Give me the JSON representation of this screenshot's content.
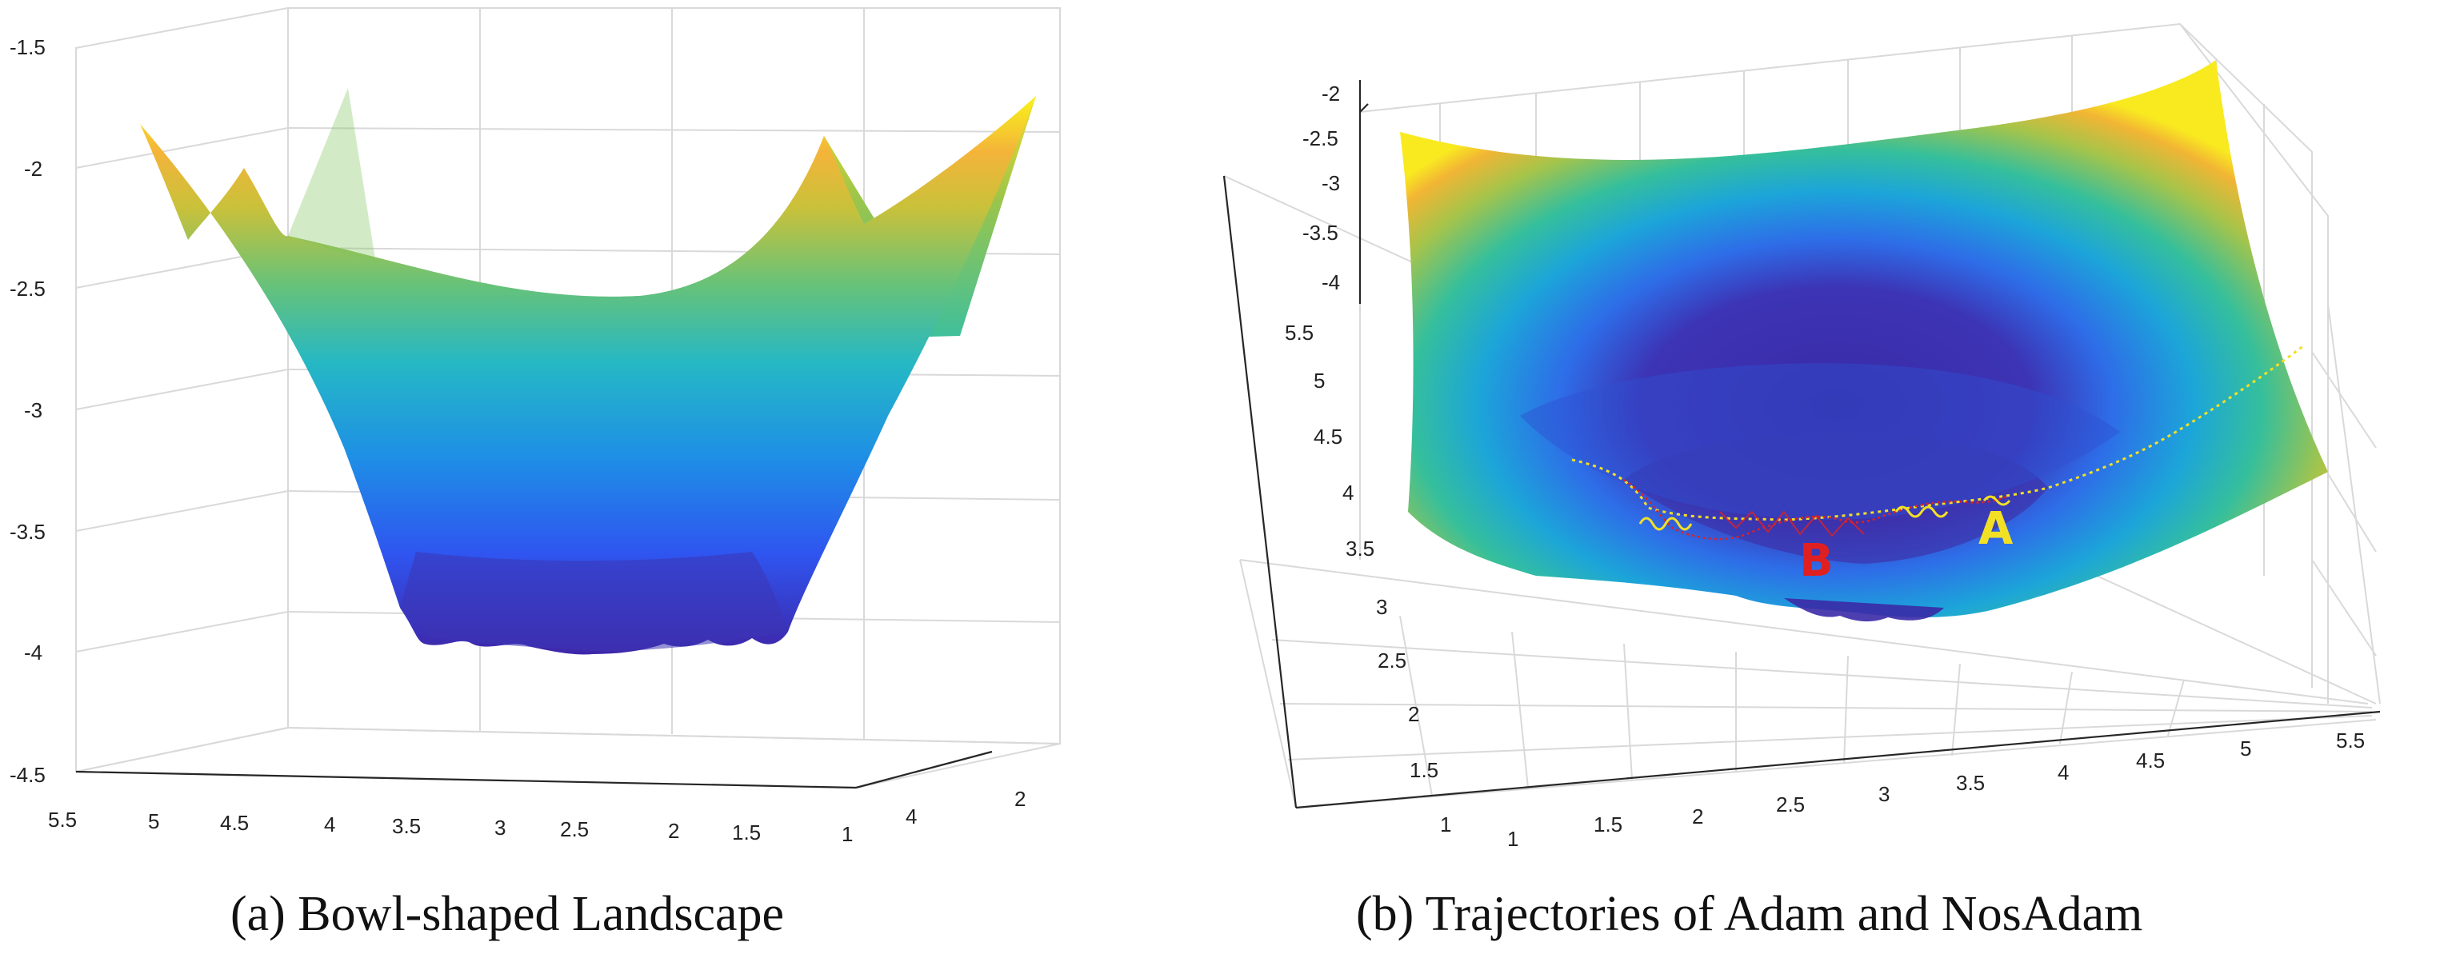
{
  "captions": {
    "a": "(a) Bowl-shaped Landscape",
    "b": "(b) Trajectories of Adam and NosAdam"
  },
  "chart_data": [
    {
      "type": "surface",
      "caption": "(a) Bowl-shaped Landscape",
      "z_ticks": [
        "-1.5",
        "-2",
        "-2.5",
        "-3",
        "-3.5",
        "-4",
        "-4.5"
      ],
      "x_ticks": [
        "5.5",
        "5",
        "4.5",
        "4",
        "3.5",
        "3",
        "2.5",
        "2",
        "1.5",
        "1"
      ],
      "y_ticks": [
        "4",
        "2"
      ],
      "zlim": [
        -4.5,
        -1.5
      ],
      "grid": true,
      "colormap": [
        "#3e26a8",
        "#2f6ff7",
        "#1ca5d9",
        "#35bf9c",
        "#9cc54a",
        "#f2b534",
        "#f9fb0e"
      ]
    },
    {
      "type": "surface",
      "caption": "(b) Trajectories of Adam and NosAdam",
      "z_ticks": [
        "-2",
        "-2.5",
        "-3",
        "-3.5",
        "-4"
      ],
      "y_ticks": [
        "5.5",
        "5",
        "4.5",
        "4",
        "3.5",
        "3",
        "2.5",
        "2",
        "1.5",
        "1"
      ],
      "x_ticks": [
        "1",
        "1.5",
        "2",
        "2.5",
        "3",
        "3.5",
        "4",
        "4.5",
        "5",
        "5.5"
      ],
      "zlim": [
        -4,
        -2
      ],
      "grid": true,
      "annotations": [
        {
          "text": "A",
          "color": "#f2e025"
        },
        {
          "text": "B",
          "color": "#e02020"
        }
      ],
      "trajectory_colors": {
        "A": "#f2e025",
        "B": "#e02020"
      },
      "colormap": [
        "#3e26a8",
        "#2f6ff7",
        "#1ca5d9",
        "#35bf9c",
        "#9cc54a",
        "#f2b534",
        "#f9fb0e"
      ]
    }
  ]
}
